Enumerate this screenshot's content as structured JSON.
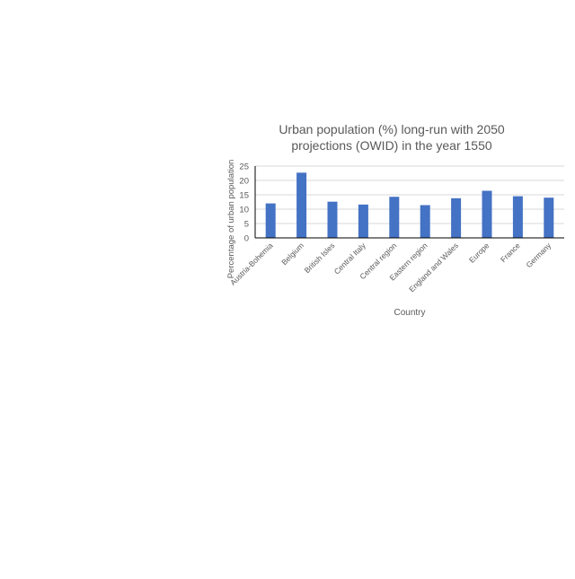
{
  "chart_data": {
    "type": "bar",
    "title_lines": [
      "Urban population (%) long-run with 2050",
      "projections (OWID) in the year 1550"
    ],
    "xlabel": "Country",
    "ylabel": "Percentage of urban population",
    "categories": [
      "Austria-Bohemia",
      "Belgium",
      "British Isles",
      "Central Italy",
      "Central region",
      "Eastern region",
      "England and Wales",
      "Europe",
      "France",
      "Germany"
    ],
    "values": [
      12,
      22.7,
      12.6,
      11.6,
      14.3,
      11.4,
      13.8,
      16.4,
      14.5,
      14
    ],
    "ylim": [
      0,
      25
    ],
    "yticks": [
      0,
      5,
      10,
      15,
      20,
      25
    ],
    "grid": true,
    "legend": "none",
    "bar_color": "#4472c4",
    "grid_color": "#d9d9d9",
    "text_color": "#595959"
  }
}
